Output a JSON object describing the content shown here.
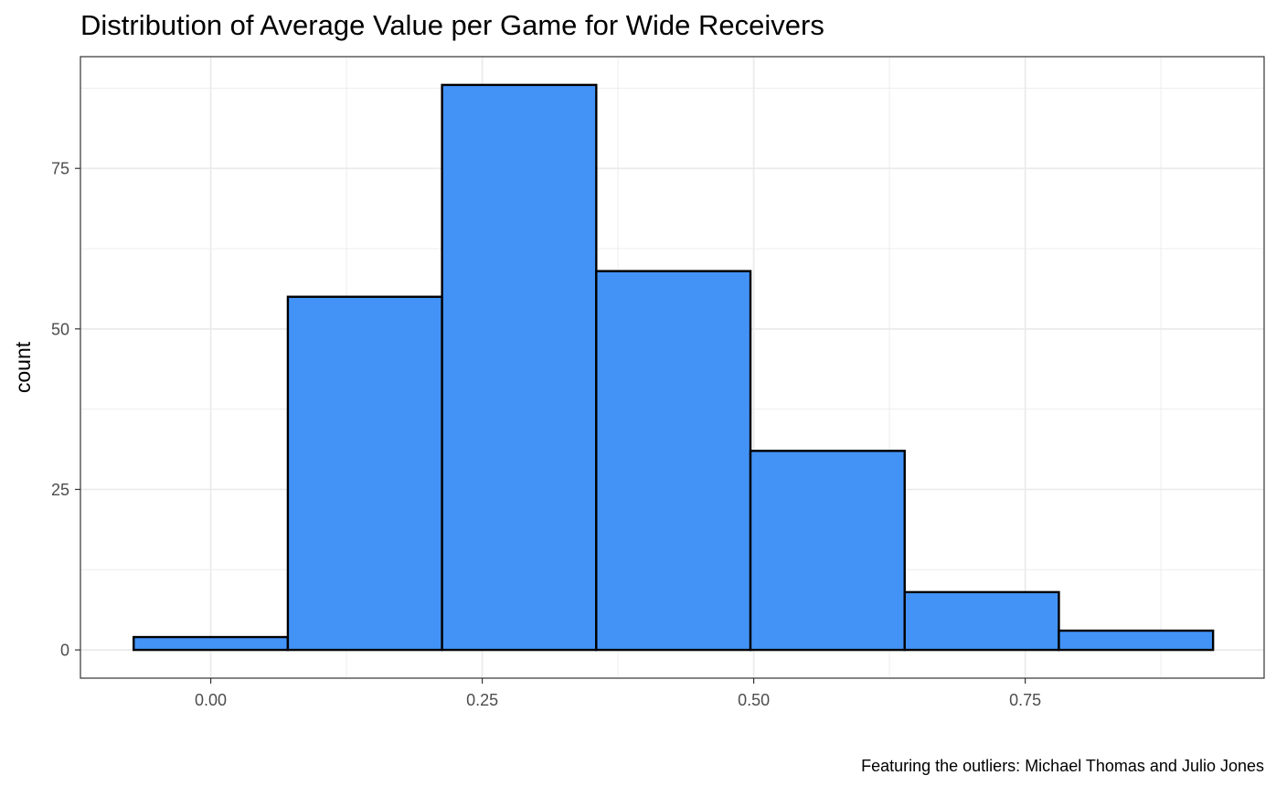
{
  "chart_data": {
    "type": "bar",
    "title": "Distribution of Average Value per Game for Wide Receivers",
    "caption": "Featuring the outliers: Michael Thomas and Julio Jones",
    "xlabel": "",
    "ylabel": "count",
    "bins": [
      {
        "x0": -0.071,
        "x1": 0.071,
        "count": 2
      },
      {
        "x0": 0.071,
        "x1": 0.213,
        "count": 55
      },
      {
        "x0": 0.213,
        "x1": 0.355,
        "count": 88
      },
      {
        "x0": 0.355,
        "x1": 0.497,
        "count": 59
      },
      {
        "x0": 0.497,
        "x1": 0.639,
        "count": 31
      },
      {
        "x0": 0.639,
        "x1": 0.781,
        "count": 9
      },
      {
        "x0": 0.781,
        "x1": 0.923,
        "count": 3
      }
    ],
    "x_ticks": [
      {
        "value": 0,
        "label": "0.00"
      },
      {
        "value": 0.25,
        "label": "0.25"
      },
      {
        "value": 0.5,
        "label": "0.50"
      },
      {
        "value": 0.75,
        "label": "0.75"
      }
    ],
    "y_ticks": [
      {
        "value": 0,
        "label": "0"
      },
      {
        "value": 25,
        "label": "25"
      },
      {
        "value": 50,
        "label": "50"
      },
      {
        "value": 75,
        "label": "75"
      }
    ],
    "xlim": [
      -0.12,
      0.97
    ],
    "ylim": [
      -4.4,
      92.4
    ],
    "grid": true,
    "bar_fill": "#4393F7",
    "bar_stroke": "#000000",
    "panel_border": "#333333",
    "grid_color": "#EBEBEB"
  }
}
